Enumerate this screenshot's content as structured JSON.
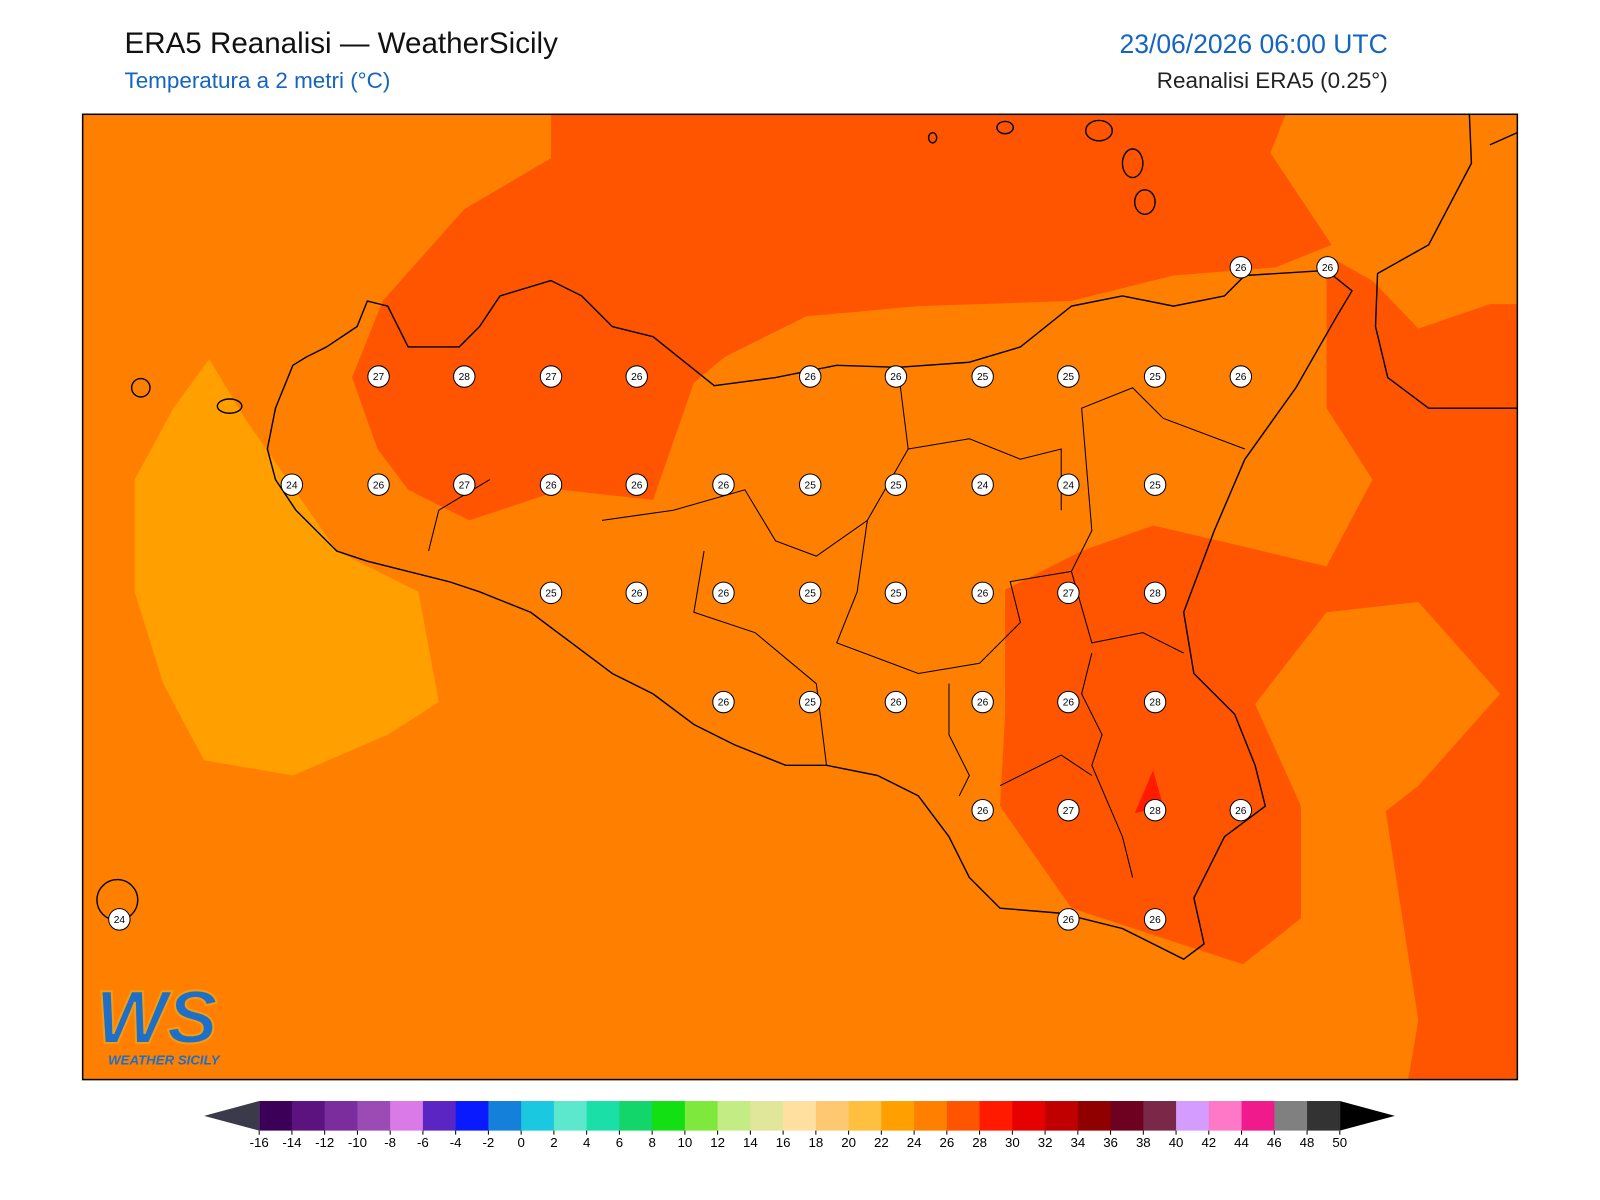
{
  "header": {
    "title": "ERA5 Reanalisi — WeatherSicily",
    "subtitle": "Temperatura a 2 metri (°C)",
    "datetime": "23/06/2026 06:00 UTC",
    "source": "Reanalisi ERA5 (0.25°)"
  },
  "stations": [
    26,
    26,
    27,
    28,
    27,
    26,
    26,
    26,
    25,
    25,
    25,
    26,
    24,
    26,
    27,
    26,
    26,
    26,
    25,
    25,
    24,
    24,
    25,
    25,
    26,
    26,
    25,
    25,
    26,
    27,
    28,
    26,
    25,
    26,
    26,
    26,
    28,
    26,
    27,
    28,
    26,
    24,
    26,
    26
  ],
  "colorbar": {
    "ticks": [
      -16,
      -14,
      -12,
      -10,
      -8,
      -6,
      -4,
      -2,
      0,
      2,
      4,
      6,
      8,
      10,
      12,
      14,
      16,
      18,
      20,
      22,
      24,
      26,
      28,
      30,
      32,
      34,
      36,
      38,
      40,
      42,
      44,
      46,
      48,
      50
    ],
    "colors": [
      "#3d0059",
      "#5c1380",
      "#7b2d9e",
      "#9b4bb4",
      "#d97ae6",
      "#5b25c4",
      "#0a1aff",
      "#1480d9",
      "#1ac8e0",
      "#5ce8cc",
      "#1ae0a8",
      "#12d66a",
      "#12e012",
      "#7ee83c",
      "#c4ec84",
      "#e0e69a",
      "#ffe0a0",
      "#fdc870",
      "#ffc040",
      "#ffa000",
      "#ff8000",
      "#ff5500",
      "#ff1a00",
      "#e60000",
      "#c00000",
      "#900000",
      "#6e0020",
      "#7a2848",
      "#d49cff",
      "#ff78c8",
      "#f01a8c",
      "#808080",
      "#333333"
    ],
    "under_color": "#3a3a4a",
    "over_color": "#000000"
  },
  "logo": {
    "mark": "WS",
    "name": "WEATHER SICILY"
  }
}
